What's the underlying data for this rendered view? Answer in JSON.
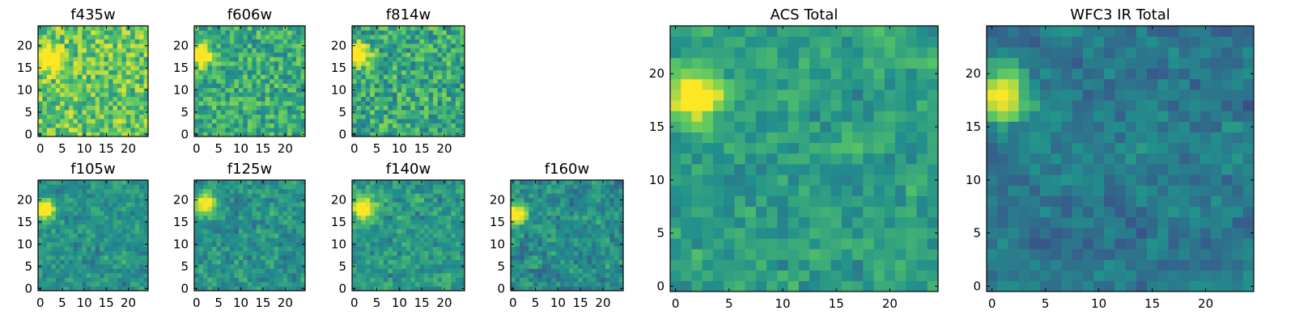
{
  "figure": {
    "colormap": "viridis",
    "colormap_stops": [
      "#440154",
      "#3b528b",
      "#21918c",
      "#5ec962",
      "#fde725"
    ],
    "grid": false
  },
  "chart_data": [
    {
      "id": "f435w",
      "type": "heatmap",
      "title": "f435w",
      "size": 25,
      "xticks": [
        "0",
        "5",
        "10",
        "15",
        "20"
      ],
      "yticks": [
        "0",
        "5",
        "10",
        "15",
        "20"
      ],
      "xlim": [
        -0.5,
        24.5
      ],
      "ylim": [
        -0.5,
        24.5
      ],
      "hotspot": {
        "x": 2,
        "y": 17
      },
      "mean_level": 0.74,
      "noise_spread": 0.22
    },
    {
      "id": "f606w",
      "type": "heatmap",
      "title": "f606w",
      "size": 25,
      "xticks": [
        "0",
        "5",
        "10",
        "15",
        "20"
      ],
      "yticks": [
        "0",
        "5",
        "10",
        "15",
        "20"
      ],
      "xlim": [
        -0.5,
        24.5
      ],
      "ylim": [
        -0.5,
        24.5
      ],
      "hotspot": {
        "x": 1,
        "y": 18
      },
      "mean_level": 0.62,
      "noise_spread": 0.2
    },
    {
      "id": "f814w",
      "type": "heatmap",
      "title": "f814w",
      "size": 25,
      "xticks": [
        "0",
        "5",
        "10",
        "15",
        "20"
      ],
      "yticks": [
        "0",
        "5",
        "10",
        "15",
        "20"
      ],
      "xlim": [
        -0.5,
        24.5
      ],
      "ylim": [
        -0.5,
        24.5
      ],
      "hotspot": {
        "x": 1,
        "y": 18
      },
      "mean_level": 0.6,
      "noise_spread": 0.22
    },
    {
      "id": "f105w",
      "type": "heatmap",
      "title": "f105w",
      "size": 25,
      "xticks": [
        "0",
        "5",
        "10",
        "15",
        "20"
      ],
      "yticks": [
        "0",
        "5",
        "10",
        "15",
        "20"
      ],
      "xlim": [
        -0.5,
        24.5
      ],
      "ylim": [
        -0.5,
        24.5
      ],
      "hotspot": {
        "x": 1,
        "y": 18
      },
      "mean_level": 0.5,
      "noise_spread": 0.16
    },
    {
      "id": "f125w",
      "type": "heatmap",
      "title": "f125w",
      "size": 25,
      "xticks": [
        "0",
        "5",
        "10",
        "15",
        "20"
      ],
      "yticks": [
        "0",
        "5",
        "10",
        "15",
        "20"
      ],
      "xlim": [
        -0.5,
        24.5
      ],
      "ylim": [
        -0.5,
        24.5
      ],
      "hotspot": {
        "x": 2,
        "y": 19
      },
      "mean_level": 0.5,
      "noise_spread": 0.18
    },
    {
      "id": "f140w",
      "type": "heatmap",
      "title": "f140w",
      "size": 25,
      "xticks": [
        "0",
        "5",
        "10",
        "15",
        "20"
      ],
      "yticks": [
        "0",
        "5",
        "10",
        "15",
        "20"
      ],
      "xlim": [
        -0.5,
        24.5
      ],
      "ylim": [
        -0.5,
        24.5
      ],
      "hotspot": {
        "x": 2,
        "y": 18
      },
      "mean_level": 0.52,
      "noise_spread": 0.18
    },
    {
      "id": "f160w",
      "type": "heatmap",
      "title": "f160w",
      "size": 25,
      "xticks": [
        "0",
        "5",
        "10",
        "15",
        "20"
      ],
      "yticks": [
        "0",
        "5",
        "10",
        "15",
        "20"
      ],
      "xlim": [
        -0.5,
        24.5
      ],
      "ylim": [
        -0.5,
        24.5
      ],
      "hotspot": {
        "x": 1,
        "y": 17
      },
      "mean_level": 0.48,
      "noise_spread": 0.18
    },
    {
      "id": "acs_total",
      "type": "heatmap",
      "title": "ACS Total",
      "size": 25,
      "xticks": [
        "0",
        "5",
        "10",
        "15",
        "20"
      ],
      "yticks": [
        "0",
        "5",
        "10",
        "15",
        "20"
      ],
      "xlim": [
        -0.5,
        24.5
      ],
      "ylim": [
        -0.5,
        24.5
      ],
      "hotspot": {
        "x": 2,
        "y": 18
      },
      "mean_level": 0.55,
      "noise_spread": 0.16
    },
    {
      "id": "wfc3_ir_total",
      "type": "heatmap",
      "title": "WFC3 IR Total",
      "size": 25,
      "xticks": [
        "0",
        "5",
        "10",
        "15",
        "20"
      ],
      "yticks": [
        "0",
        "5",
        "10",
        "15",
        "20"
      ],
      "xlim": [
        -0.5,
        24.5
      ],
      "ylim": [
        -0.5,
        24.5
      ],
      "hotspot": {
        "x": 1,
        "y": 18
      },
      "mean_level": 0.4,
      "noise_spread": 0.14
    }
  ]
}
